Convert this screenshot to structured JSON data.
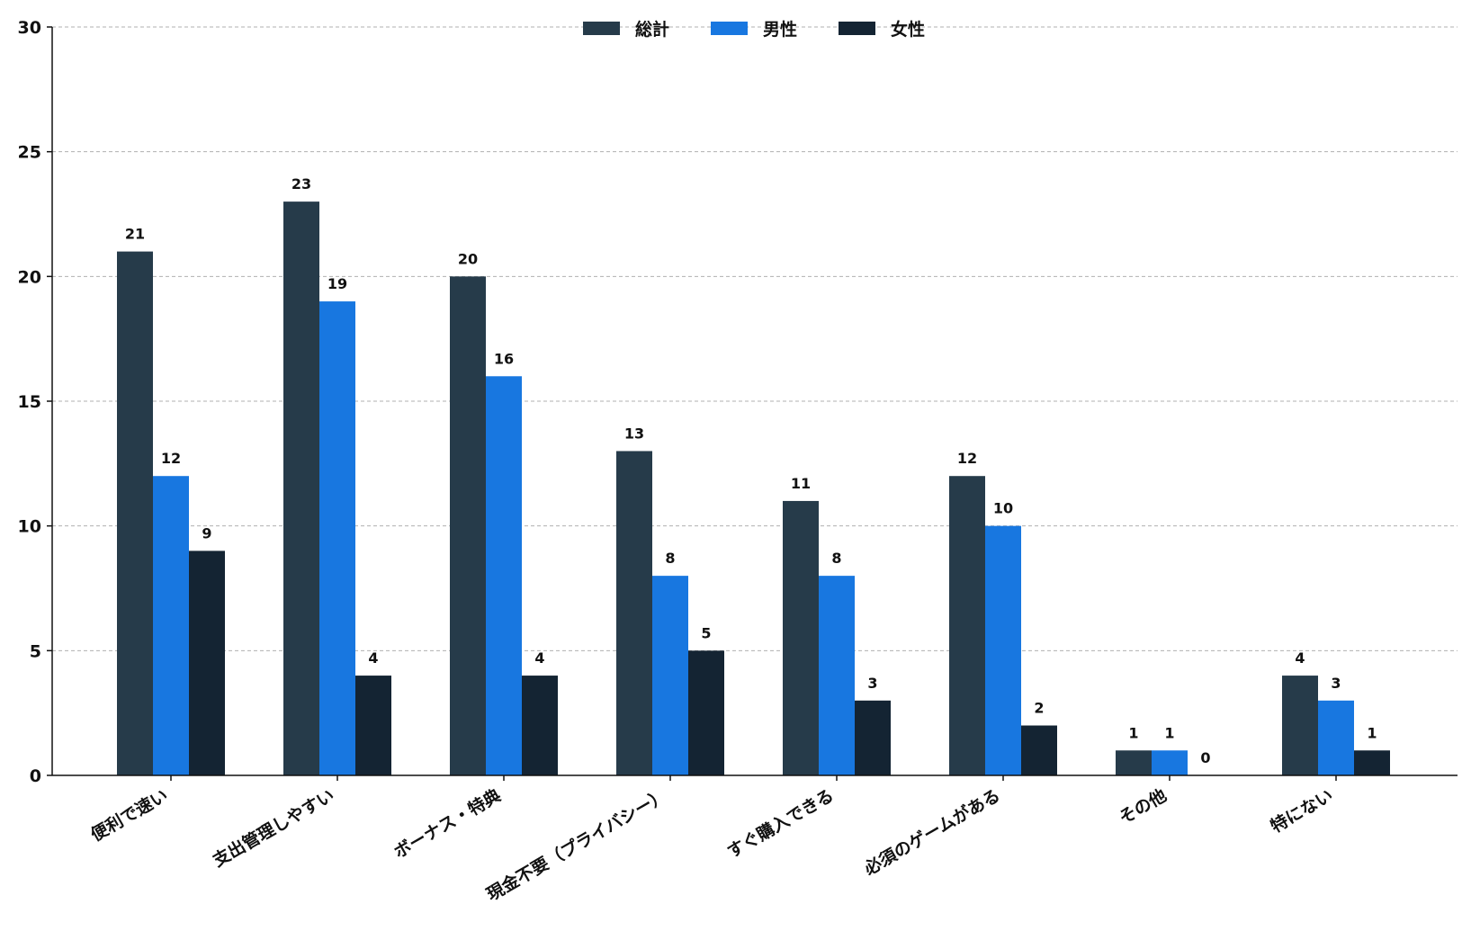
{
  "chart_data": {
    "type": "bar",
    "title": "",
    "xlabel": "",
    "ylabel": "",
    "ylim": [
      0,
      30
    ],
    "yticks": [
      0,
      5,
      10,
      15,
      20,
      25,
      30
    ],
    "grid": "horizontal-dashed",
    "legend_position": "top-center",
    "categories": [
      "便利で速い",
      "支出管理しやすい",
      "ボーナス・特典",
      "現金不要（プライバシー）",
      "すぐ購入できる",
      "必須のゲームがある",
      "その他",
      "特にない"
    ],
    "series": [
      {
        "name": "総計",
        "color": "#263b4a",
        "values": [
          21,
          23,
          20,
          13,
          11,
          12,
          1,
          4
        ]
      },
      {
        "name": "男性",
        "color": "#1877e0",
        "values": [
          12,
          19,
          16,
          8,
          8,
          10,
          1,
          3
        ]
      },
      {
        "name": "女性",
        "color": "#142433",
        "values": [
          9,
          4,
          4,
          5,
          3,
          2,
          0,
          1
        ]
      }
    ]
  }
}
